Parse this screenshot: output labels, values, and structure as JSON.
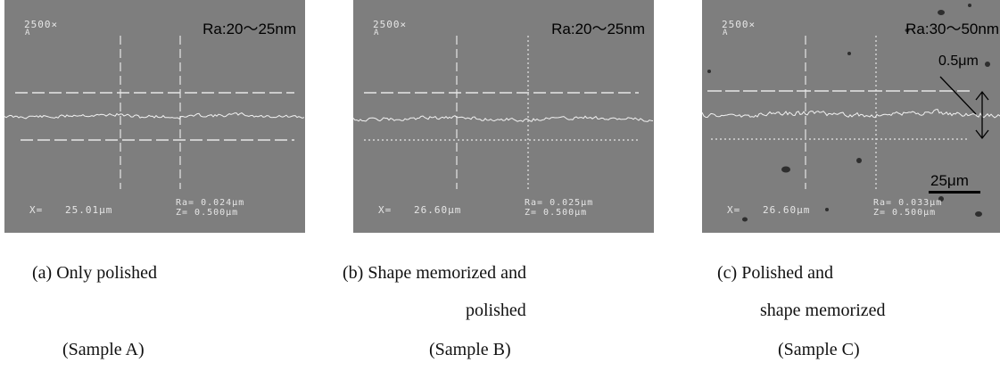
{
  "panels": [
    {
      "id": "a",
      "magnification": "2500×",
      "mag_sub": "A",
      "roughness": "Ra:20～25nm",
      "x_label": "X=",
      "x_value": "25.01μm",
      "readout_1": "Ra= 0.024μm",
      "readout_2": "Z= 0.500μm",
      "caption_line1": "(a) Only polished",
      "caption_line2": "",
      "sample": "(Sample A)",
      "upper_ref_line": "dashed",
      "lower_ref_line": "dashed",
      "right_vertical_line": "dashed"
    },
    {
      "id": "b",
      "magnification": "2500×",
      "mag_sub": "A",
      "roughness": "Ra:20～25nm",
      "x_label": "X=",
      "x_value": "26.60μm",
      "readout_1": "Ra= 0.025μm",
      "readout_2": "Z= 0.500μm",
      "caption_line1": "(b) Shape memorized and",
      "caption_line2": "polished",
      "sample": "(Sample B)",
      "upper_ref_line": "dashed",
      "lower_ref_line": "dotted",
      "right_vertical_line": "dotted"
    },
    {
      "id": "c",
      "magnification": "2500×",
      "mag_sub": "A",
      "roughness": "Ra:30～50nm",
      "x_label": "X=",
      "x_value": "26.60μm",
      "readout_1": "Ra= 0.033μm",
      "readout_2": "Z= 0.500μm",
      "caption_line1": "(c) Polished and",
      "caption_line2": "shape memorized",
      "sample": "(Sample C)",
      "upper_ref_line": "dashed",
      "lower_ref_line": "dotted",
      "right_vertical_line": "dotted",
      "scale_annotation": "0.5μm",
      "scale_bar_label": "25μm"
    }
  ],
  "colors": {
    "panel_background": "#7e7e7e",
    "overlay_lines": "#e6e6e6",
    "annotation": "#000000"
  }
}
